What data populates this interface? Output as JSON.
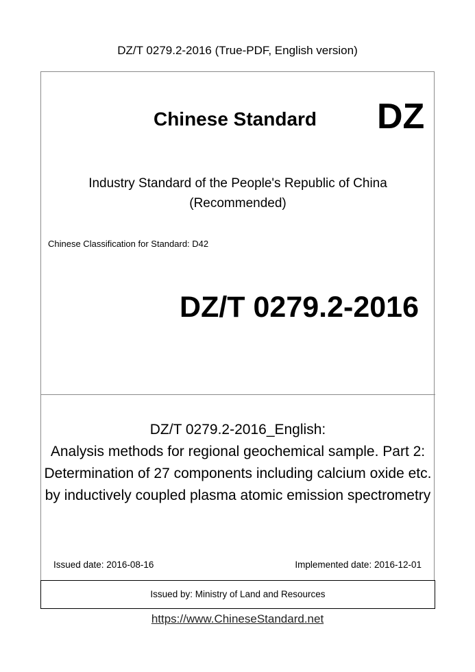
{
  "header": "DZ/T 0279.2-2016 (True-PDF, English version)",
  "cover": {
    "title": "Chinese Standard",
    "code": "DZ",
    "industry_lines": [
      "Industry Standard of the People's Republic of China",
      "(Recommended)"
    ],
    "classification": "Chinese Classification for Standard: D42",
    "number": "DZ/T 0279.2-2016",
    "title_lines": [
      "DZ/T 0279.2-2016_English:",
      "Analysis methods for regional geochemical sample. Part 2:",
      "Determination of 27 components including calcium oxide etc.",
      "by inductively coupled plasma atomic emission spectrometry"
    ],
    "issued_date": "Issued date: 2016-08-16",
    "implemented_date": "Implemented date: 2016-12-01",
    "issued_by": "Issued by: Ministry of Land and Resources"
  },
  "footer_link": "https://www.ChineseStandard.net"
}
